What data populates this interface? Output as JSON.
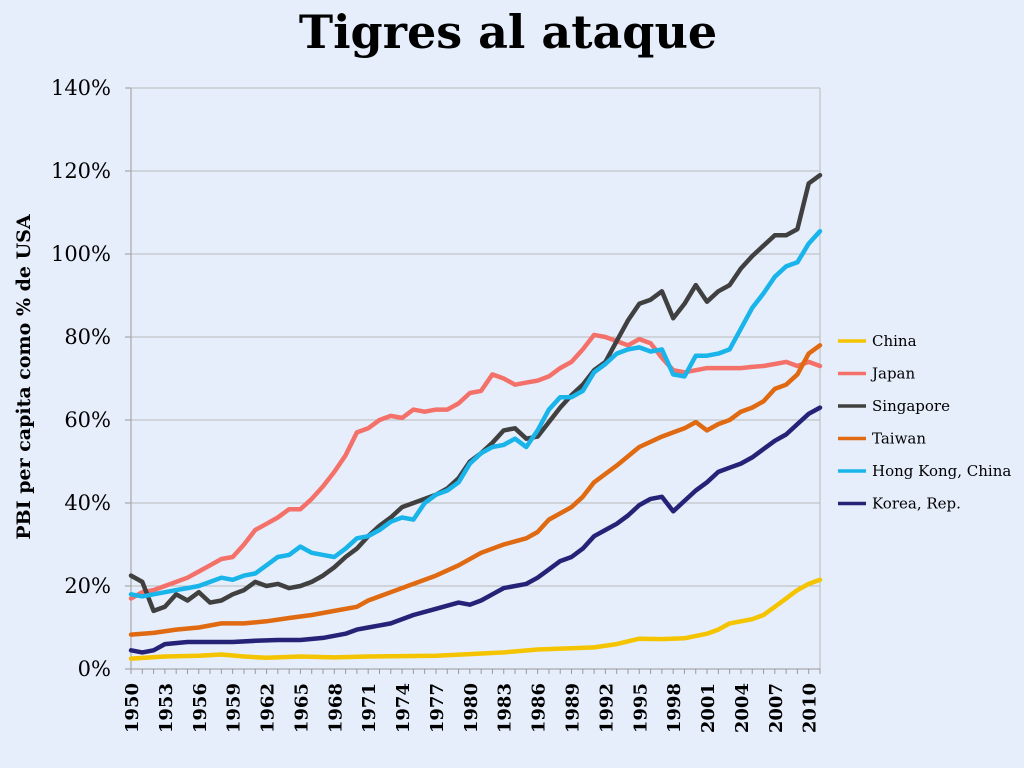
{
  "chart_data": {
    "type": "line",
    "title": "Tigres al ataque",
    "ylabel": "PBI per capita como % de USA",
    "xlabel": "",
    "ylim": [
      0,
      140
    ],
    "yticks": [
      0,
      20,
      40,
      60,
      80,
      100,
      120,
      140
    ],
    "ytick_labels": [
      "0%",
      "20%",
      "40%",
      "60%",
      "80%",
      "100%",
      "120%",
      "140%"
    ],
    "xlim": [
      1950,
      2011
    ],
    "xticks": [
      1950,
      1953,
      1956,
      1959,
      1962,
      1965,
      1968,
      1971,
      1974,
      1977,
      1980,
      1983,
      1986,
      1989,
      1992,
      1995,
      1998,
      2001,
      2004,
      2007,
      2010
    ],
    "xtick_labels": [
      "1950",
      "1953",
      "1956",
      "1959",
      "1962",
      "1965",
      "1968",
      "1971",
      "1974",
      "1977",
      "1980",
      "1983",
      "1986",
      "1989",
      "1992",
      "1995",
      "1998",
      "2001",
      "2004",
      "2007",
      "2010"
    ],
    "grid": "horizontal",
    "legend_position": "right",
    "series": [
      {
        "name": "China",
        "color": "#f5c400",
        "points": [
          [
            1950,
            2.5
          ],
          [
            1953,
            3
          ],
          [
            1956,
            3.2
          ],
          [
            1958,
            3.5
          ],
          [
            1960,
            3
          ],
          [
            1962,
            2.7
          ],
          [
            1965,
            3
          ],
          [
            1968,
            2.8
          ],
          [
            1971,
            3
          ],
          [
            1974,
            3.1
          ],
          [
            1977,
            3.2
          ],
          [
            1980,
            3.6
          ],
          [
            1983,
            4
          ],
          [
            1986,
            4.7
          ],
          [
            1989,
            5
          ],
          [
            1991,
            5.2
          ],
          [
            1993,
            6
          ],
          [
            1995,
            7.3
          ],
          [
            1997,
            7.2
          ],
          [
            1999,
            7.4
          ],
          [
            2001,
            8.5
          ],
          [
            2002,
            9.5
          ],
          [
            2003,
            11
          ],
          [
            2005,
            12
          ],
          [
            2006,
            13
          ],
          [
            2007,
            15
          ],
          [
            2008,
            17
          ],
          [
            2009,
            19
          ],
          [
            2010,
            20.5
          ],
          [
            2011,
            21.5
          ]
        ]
      },
      {
        "name": "Japan",
        "color": "#f4716a",
        "points": [
          [
            1950,
            17
          ],
          [
            1951,
            18.5
          ],
          [
            1952,
            19
          ],
          [
            1953,
            20
          ],
          [
            1954,
            21
          ],
          [
            1955,
            22
          ],
          [
            1956,
            23.5
          ],
          [
            1957,
            25
          ],
          [
            1958,
            26.5
          ],
          [
            1959,
            27
          ],
          [
            1960,
            30
          ],
          [
            1961,
            33.5
          ],
          [
            1962,
            35
          ],
          [
            1963,
            36.5
          ],
          [
            1964,
            38.5
          ],
          [
            1965,
            38.5
          ],
          [
            1966,
            41
          ],
          [
            1967,
            44
          ],
          [
            1968,
            47.5
          ],
          [
            1969,
            51.5
          ],
          [
            1970,
            57
          ],
          [
            1971,
            58
          ],
          [
            1972,
            60
          ],
          [
            1973,
            61
          ],
          [
            1974,
            60.5
          ],
          [
            1975,
            62.5
          ],
          [
            1976,
            62
          ],
          [
            1977,
            62.5
          ],
          [
            1978,
            62.5
          ],
          [
            1979,
            64
          ],
          [
            1980,
            66.5
          ],
          [
            1981,
            67
          ],
          [
            1982,
            71
          ],
          [
            1983,
            70
          ],
          [
            1984,
            68.5
          ],
          [
            1985,
            69
          ],
          [
            1986,
            69.5
          ],
          [
            1987,
            70.5
          ],
          [
            1988,
            72.5
          ],
          [
            1989,
            74
          ],
          [
            1990,
            77
          ],
          [
            1991,
            80.5
          ],
          [
            1992,
            80
          ],
          [
            1993,
            79
          ],
          [
            1994,
            78
          ],
          [
            1995,
            79.5
          ],
          [
            1996,
            78.5
          ],
          [
            1997,
            75
          ],
          [
            1998,
            72
          ],
          [
            1999,
            71.5
          ],
          [
            2000,
            72
          ],
          [
            2001,
            72.5
          ],
          [
            2002,
            72.5
          ],
          [
            2003,
            72.5
          ],
          [
            2004,
            72.5
          ],
          [
            2005,
            72.8
          ],
          [
            2006,
            73
          ],
          [
            2007,
            73.5
          ],
          [
            2008,
            74
          ],
          [
            2009,
            73
          ],
          [
            2010,
            74
          ],
          [
            2011,
            73
          ]
        ]
      },
      {
        "name": "Singapore",
        "color": "#404040",
        "points": [
          [
            1950,
            22.5
          ],
          [
            1951,
            21
          ],
          [
            1952,
            14
          ],
          [
            1953,
            15
          ],
          [
            1954,
            18
          ],
          [
            1955,
            16.5
          ],
          [
            1956,
            18.5
          ],
          [
            1957,
            16
          ],
          [
            1958,
            16.5
          ],
          [
            1959,
            18
          ],
          [
            1960,
            19
          ],
          [
            1961,
            21
          ],
          [
            1962,
            20
          ],
          [
            1963,
            20.5
          ],
          [
            1964,
            19.5
          ],
          [
            1965,
            20
          ],
          [
            1966,
            21
          ],
          [
            1967,
            22.5
          ],
          [
            1968,
            24.5
          ],
          [
            1969,
            27
          ],
          [
            1970,
            29
          ],
          [
            1971,
            32
          ],
          [
            1972,
            34.5
          ],
          [
            1973,
            36.5
          ],
          [
            1974,
            39
          ],
          [
            1975,
            40
          ],
          [
            1976,
            41
          ],
          [
            1977,
            42
          ],
          [
            1978,
            43.5
          ],
          [
            1979,
            46
          ],
          [
            1980,
            50
          ],
          [
            1981,
            52
          ],
          [
            1982,
            54.5
          ],
          [
            1983,
            57.5
          ],
          [
            1984,
            58
          ],
          [
            1985,
            55.5
          ],
          [
            1986,
            56
          ],
          [
            1987,
            59.5
          ],
          [
            1988,
            63
          ],
          [
            1989,
            66
          ],
          [
            1990,
            68.5
          ],
          [
            1991,
            72
          ],
          [
            1992,
            74
          ],
          [
            1993,
            79
          ],
          [
            1994,
            84
          ],
          [
            1995,
            88
          ],
          [
            1996,
            89
          ],
          [
            1997,
            91
          ],
          [
            1998,
            84.5
          ],
          [
            1999,
            88
          ],
          [
            2000,
            92.5
          ],
          [
            2001,
            88.5
          ],
          [
            2002,
            91
          ],
          [
            2003,
            92.5
          ],
          [
            2004,
            96.5
          ],
          [
            2005,
            99.5
          ],
          [
            2006,
            102
          ],
          [
            2007,
            104.5
          ],
          [
            2008,
            104.5
          ],
          [
            2009,
            106
          ],
          [
            2010,
            117
          ],
          [
            2011,
            119
          ]
        ]
      },
      {
        "name": "Taiwan",
        "color": "#e06a12",
        "points": [
          [
            1950,
            8.3
          ],
          [
            1952,
            8.7
          ],
          [
            1954,
            9.5
          ],
          [
            1956,
            10
          ],
          [
            1958,
            11
          ],
          [
            1960,
            11
          ],
          [
            1962,
            11.5
          ],
          [
            1964,
            12.3
          ],
          [
            1966,
            13
          ],
          [
            1968,
            14
          ],
          [
            1970,
            15
          ],
          [
            1971,
            16.5
          ],
          [
            1973,
            18.5
          ],
          [
            1975,
            20.5
          ],
          [
            1977,
            22.5
          ],
          [
            1979,
            25
          ],
          [
            1981,
            28
          ],
          [
            1983,
            30
          ],
          [
            1985,
            31.5
          ],
          [
            1986,
            33
          ],
          [
            1987,
            36
          ],
          [
            1989,
            39
          ],
          [
            1990,
            41.5
          ],
          [
            1991,
            45
          ],
          [
            1993,
            49
          ],
          [
            1995,
            53.5
          ],
          [
            1997,
            56
          ],
          [
            1998,
            57
          ],
          [
            1999,
            58
          ],
          [
            2000,
            59.5
          ],
          [
            2001,
            57.5
          ],
          [
            2002,
            59
          ],
          [
            2003,
            60
          ],
          [
            2004,
            62
          ],
          [
            2005,
            63
          ],
          [
            2006,
            64.5
          ],
          [
            2007,
            67.5
          ],
          [
            2008,
            68.5
          ],
          [
            2009,
            71
          ],
          [
            2010,
            76
          ],
          [
            2011,
            78
          ]
        ]
      },
      {
        "name": "Hong Kong, China",
        "color": "#18b4ea",
        "points": [
          [
            1950,
            18
          ],
          [
            1951,
            17.5
          ],
          [
            1952,
            18
          ],
          [
            1953,
            18.5
          ],
          [
            1954,
            19
          ],
          [
            1955,
            19.5
          ],
          [
            1956,
            20
          ],
          [
            1957,
            21
          ],
          [
            1958,
            22
          ],
          [
            1959,
            21.5
          ],
          [
            1960,
            22.5
          ],
          [
            1961,
            23
          ],
          [
            1962,
            25
          ],
          [
            1963,
            27
          ],
          [
            1964,
            27.5
          ],
          [
            1965,
            29.5
          ],
          [
            1966,
            28
          ],
          [
            1967,
            27.5
          ],
          [
            1968,
            27
          ],
          [
            1969,
            29
          ],
          [
            1970,
            31.5
          ],
          [
            1971,
            32
          ],
          [
            1972,
            33.5
          ],
          [
            1973,
            35.5
          ],
          [
            1974,
            36.5
          ],
          [
            1975,
            36
          ],
          [
            1976,
            40
          ],
          [
            1977,
            42
          ],
          [
            1978,
            43
          ],
          [
            1979,
            45
          ],
          [
            1980,
            49.5
          ],
          [
            1981,
            52
          ],
          [
            1982,
            53.5
          ],
          [
            1983,
            54
          ],
          [
            1984,
            55.5
          ],
          [
            1985,
            53.5
          ],
          [
            1986,
            57.5
          ],
          [
            1987,
            62.5
          ],
          [
            1988,
            65.5
          ],
          [
            1989,
            65.5
          ],
          [
            1990,
            67
          ],
          [
            1991,
            71.5
          ],
          [
            1992,
            73.5
          ],
          [
            1993,
            76
          ],
          [
            1994,
            77
          ],
          [
            1995,
            77.5
          ],
          [
            1996,
            76.5
          ],
          [
            1997,
            77
          ],
          [
            1998,
            71
          ],
          [
            1999,
            70.5
          ],
          [
            2000,
            75.5
          ],
          [
            2001,
            75.5
          ],
          [
            2002,
            76
          ],
          [
            2003,
            77
          ],
          [
            2004,
            82
          ],
          [
            2005,
            87
          ],
          [
            2006,
            90.5
          ],
          [
            2007,
            94.5
          ],
          [
            2008,
            97
          ],
          [
            2009,
            98
          ],
          [
            2010,
            102.5
          ],
          [
            2011,
            105.5
          ]
        ]
      },
      {
        "name": "Korea, Rep.",
        "color": "#252377",
        "points": [
          [
            1950,
            4.5
          ],
          [
            1951,
            4
          ],
          [
            1952,
            4.5
          ],
          [
            1953,
            6
          ],
          [
            1955,
            6.5
          ],
          [
            1957,
            6.5
          ],
          [
            1959,
            6.5
          ],
          [
            1961,
            6.8
          ],
          [
            1963,
            7
          ],
          [
            1965,
            7
          ],
          [
            1967,
            7.5
          ],
          [
            1969,
            8.5
          ],
          [
            1970,
            9.5
          ],
          [
            1971,
            10
          ],
          [
            1973,
            11
          ],
          [
            1975,
            13
          ],
          [
            1977,
            14.5
          ],
          [
            1979,
            16
          ],
          [
            1980,
            15.5
          ],
          [
            1981,
            16.5
          ],
          [
            1982,
            18
          ],
          [
            1983,
            19.5
          ],
          [
            1985,
            20.5
          ],
          [
            1986,
            22
          ],
          [
            1987,
            24
          ],
          [
            1988,
            26
          ],
          [
            1989,
            27
          ],
          [
            1990,
            29
          ],
          [
            1991,
            32
          ],
          [
            1992,
            33.5
          ],
          [
            1993,
            35
          ],
          [
            1994,
            37
          ],
          [
            1995,
            39.5
          ],
          [
            1996,
            41
          ],
          [
            1997,
            41.5
          ],
          [
            1998,
            38
          ],
          [
            1999,
            40.5
          ],
          [
            2000,
            43
          ],
          [
            2001,
            45
          ],
          [
            2002,
            47.5
          ],
          [
            2003,
            48.5
          ],
          [
            2004,
            49.5
          ],
          [
            2005,
            51
          ],
          [
            2006,
            53
          ],
          [
            2007,
            55
          ],
          [
            2008,
            56.5
          ],
          [
            2009,
            59
          ],
          [
            2010,
            61.5
          ],
          [
            2011,
            63
          ]
        ]
      }
    ]
  }
}
